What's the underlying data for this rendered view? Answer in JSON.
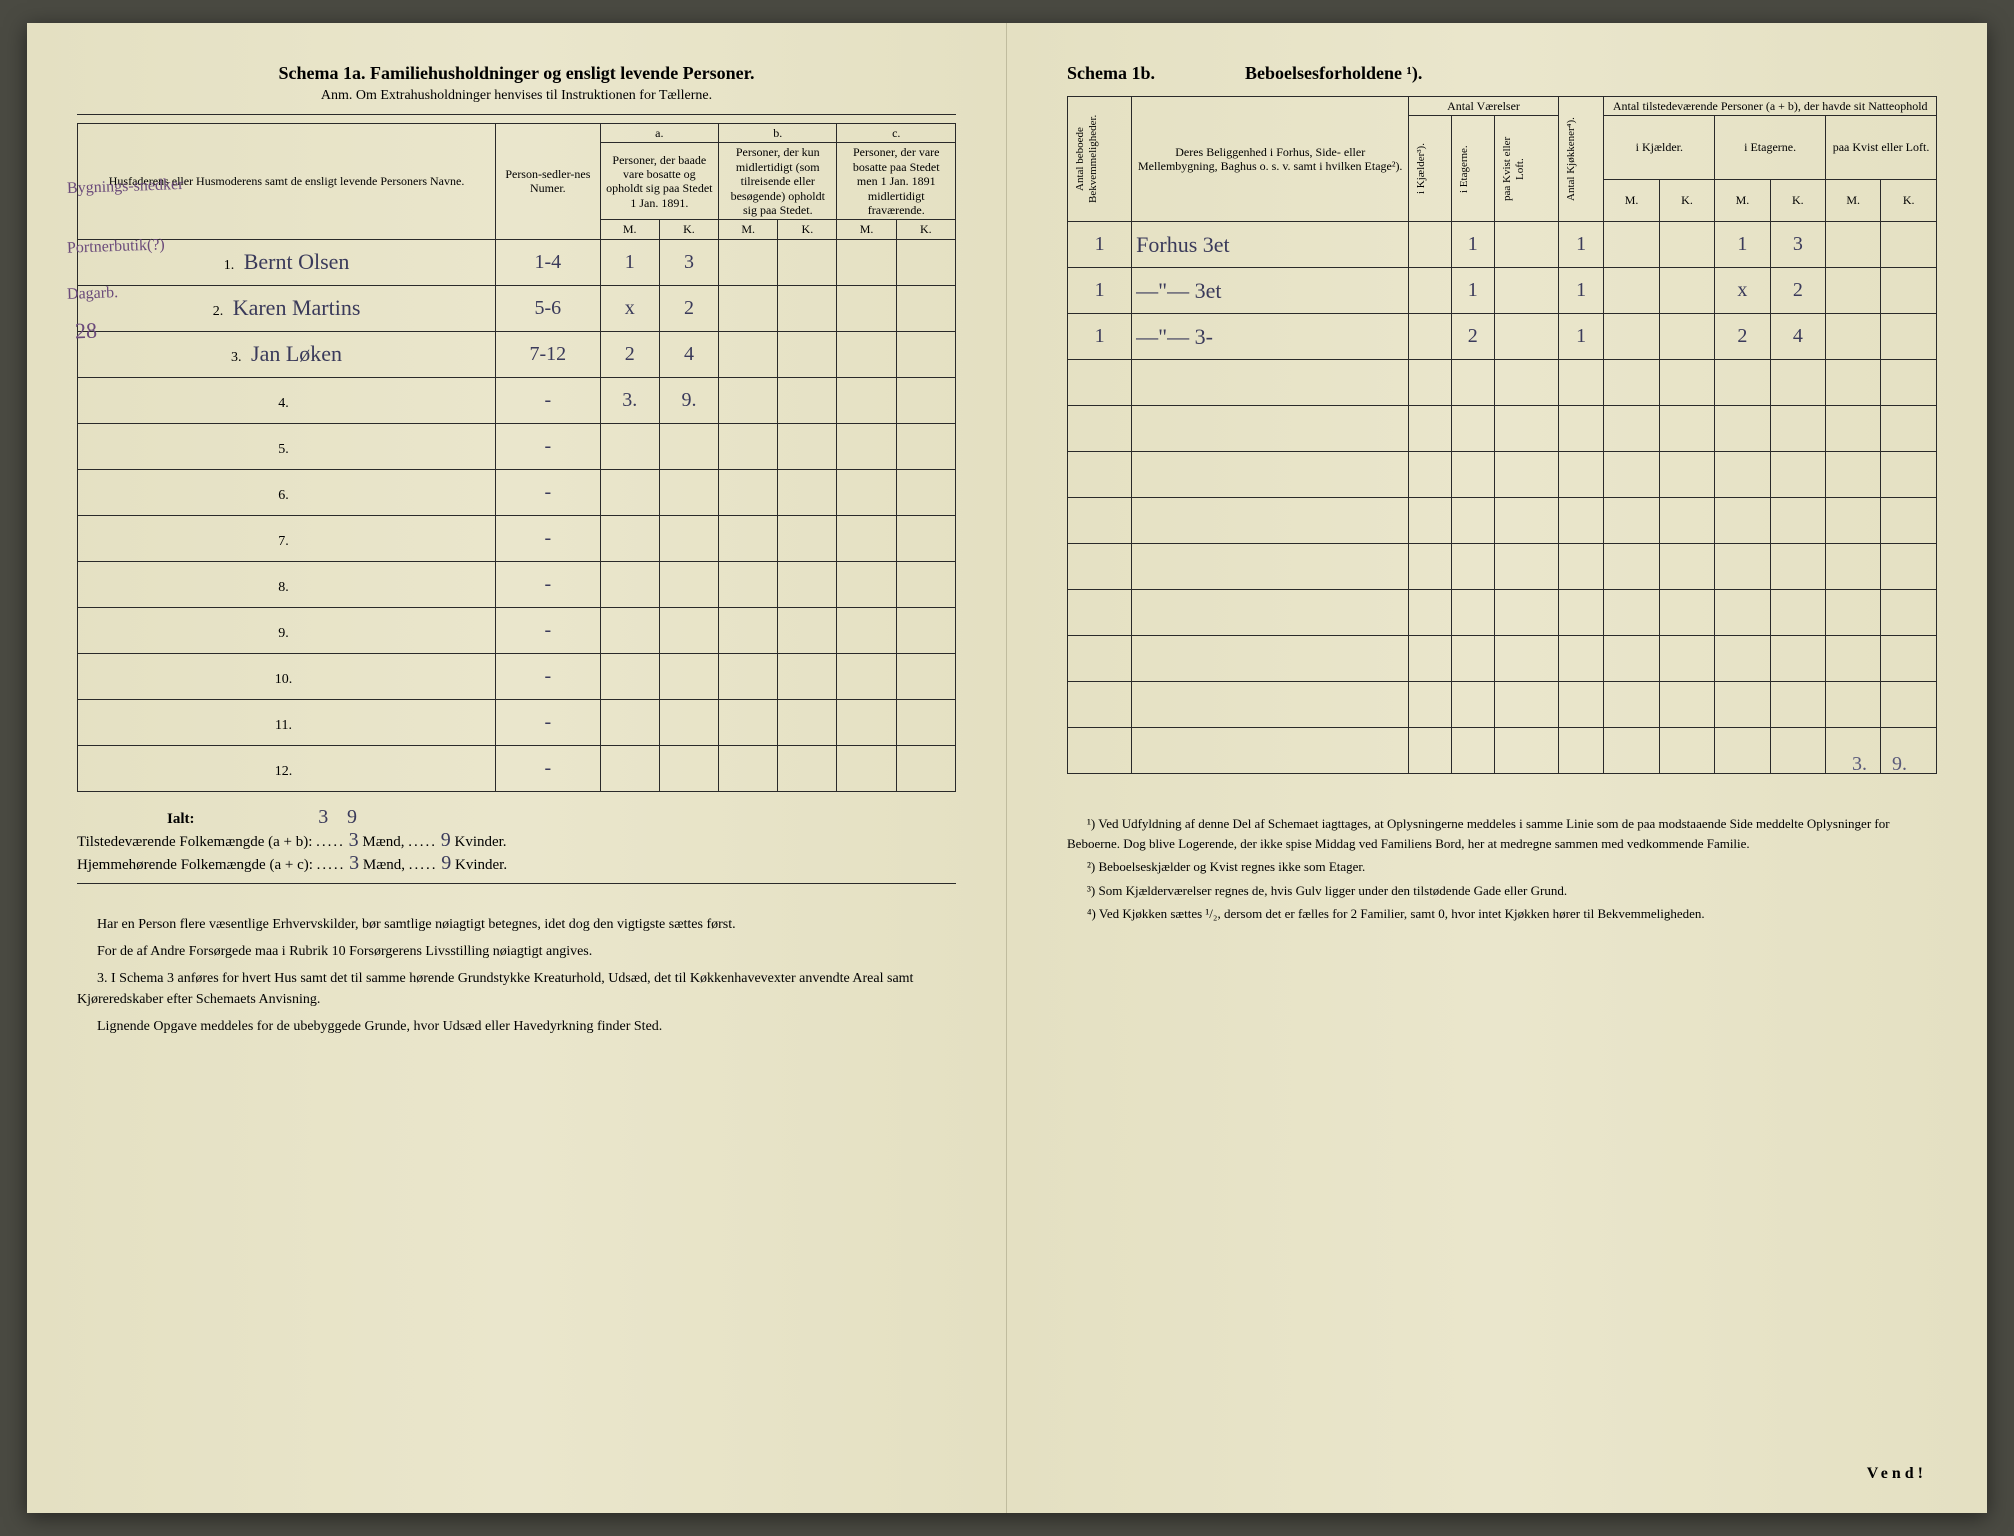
{
  "left": {
    "schema_label": "Schema 1a.",
    "schema_title": "Familiehusholdninger og ensligt levende Personer.",
    "subtitle": "Anm. Om Extrahusholdninger henvises til Instruktionen for Tællerne.",
    "col_headers": {
      "name": "Husfaderens eller Husmoderens samt de ensligt levende Personers Navne.",
      "num": "Person-sedler-nes Numer.",
      "a_label": "a.",
      "a_text": "Personer, der baade vare bosatte og opholdt sig paa Stedet 1 Jan. 1891.",
      "b_label": "b.",
      "b_text": "Personer, der kun midlertidigt (som tilreisende eller besøgende) opholdt sig paa Stedet.",
      "c_label": "c.",
      "c_text": "Personer, der vare bosatte paa Stedet men 1 Jan. 1891 midlertidigt fraværende.",
      "M": "M.",
      "K": "K."
    },
    "occupations": [
      "Bygnings-snedker",
      "Portnerbutik(?)",
      "Dagarb."
    ],
    "rows": [
      {
        "n": "1.",
        "name": "Bernt Olsen",
        "num": "1-4",
        "aM": "1",
        "aK": "3"
      },
      {
        "n": "2.",
        "name": "Karen Martins",
        "num": "5-6",
        "aM": "x",
        "aK": "2"
      },
      {
        "n": "3.",
        "name": "Jan Løken",
        "num": "7-12",
        "aM": "2",
        "aK": "4"
      },
      {
        "n": "4.",
        "name": "",
        "num": "-",
        "aM": "3.",
        "aK": "9."
      },
      {
        "n": "5.",
        "name": "",
        "num": "-"
      },
      {
        "n": "6.",
        "name": "",
        "num": "-"
      },
      {
        "n": "7.",
        "name": "",
        "num": "-"
      },
      {
        "n": "8.",
        "name": "",
        "num": "-"
      },
      {
        "n": "9.",
        "name": "",
        "num": "-"
      },
      {
        "n": "10.",
        "name": "",
        "num": "-"
      },
      {
        "n": "11.",
        "name": "",
        "num": "-"
      },
      {
        "n": "12.",
        "name": "",
        "num": "-"
      }
    ],
    "margin28": "28",
    "ialt_label": "Ialt:",
    "ialt_M": "3",
    "ialt_K": "9",
    "sum1_label": "Tilstedeværende Folkemængde (a + b):",
    "sum1_M": "3",
    "sum1_K": "9",
    "sum2_label": "Hjemmehørende Folkemængde (a + c):",
    "sum2_M": "3",
    "sum2_K": "9",
    "maend": "Mænd,",
    "kvinder": "Kvinder.",
    "notes": [
      "Har en Person flere væsentlige Erhvervskilder, bør samtlige nøiagtigt betegnes, idet dog den vigtigste sættes først.",
      "For de af Andre Forsørgede maa i Rubrik 10 Forsørgerens Livsstilling nøiagtigt angives.",
      "3. I Schema 3 anføres for hvert Hus samt det til samme hørende Grundstykke Kreaturhold, Udsæd, det til Køkkenhavevexter anvendte Areal samt Kjøreredskaber efter Schemaets Anvisning.",
      "Lignende Opgave meddeles for de ubebyggede Grunde, hvor Udsæd eller Havedyrkning finder Sted."
    ]
  },
  "right": {
    "schema_label": "Schema 1b.",
    "schema_title": "Beboelsesforholdene ¹).",
    "col_headers": {
      "antal_beboede": "Antal beboede Bekvemmeligheder.",
      "beliggenhed": "Deres Beliggenhed i Forhus, Side- eller Mellembygning, Baghus o. s. v. samt i hvilken Etage²).",
      "antal_vaer": "Antal Værelser",
      "kjaelder": "i Kjælder³).",
      "etagerne": "i Etagerne.",
      "kvist": "paa Kvist eller Loft.",
      "kjokkener": "Antal Kjøkkener⁴).",
      "tilstede": "Antal tilstedeværende Personer (a + b), der havde sit Natteophold",
      "ikjaelder": "i Kjælder.",
      "ietagerne": "i Etagerne.",
      "paakvist": "paa Kvist eller Loft.",
      "M": "M.",
      "K": "K."
    },
    "rows": [
      {
        "ab": "1",
        "loc": "Forhus 3et",
        "et": "1",
        "kj": "1",
        "eM": "1",
        "eK": "3"
      },
      {
        "ab": "1",
        "loc": "—\"— 3et",
        "et": "1",
        "kj": "1",
        "eM": "x",
        "eK": "2"
      },
      {
        "ab": "1",
        "loc": "—\"— 3-",
        "et": "2",
        "kj": "1",
        "eM": "2",
        "eK": "4"
      }
    ],
    "bottom_totals": {
      "M": "3.",
      "K": "9."
    },
    "footnotes": [
      "¹) Ved Udfyldning af denne Del af Schemaet iagttages, at Oplysningerne meddeles i samme Linie som de paa modstaaende Side meddelte Oplysninger for Beboerne. Dog blive Logerende, der ikke spise Middag ved Familiens Bord, her at medregne sammen med vedkommende Familie.",
      "²) Beboelseskjælder og Kvist regnes ikke som Etager.",
      "³) Som Kjælderværelser regnes de, hvis Gulv ligger under den tilstødende Gade eller Grund.",
      "⁴) Ved Kjøkken sættes ¹/₂, dersom det er fælles for 2 Familier, samt 0, hvor intet Kjøkken hører til Bekvemmeligheden."
    ],
    "vend": "Vend!"
  },
  "colors": {
    "paper": "#e8e4c8",
    "ink": "#2a2a2a",
    "handwriting": "#3a3a5a",
    "pencil": "#6a4a7a"
  }
}
